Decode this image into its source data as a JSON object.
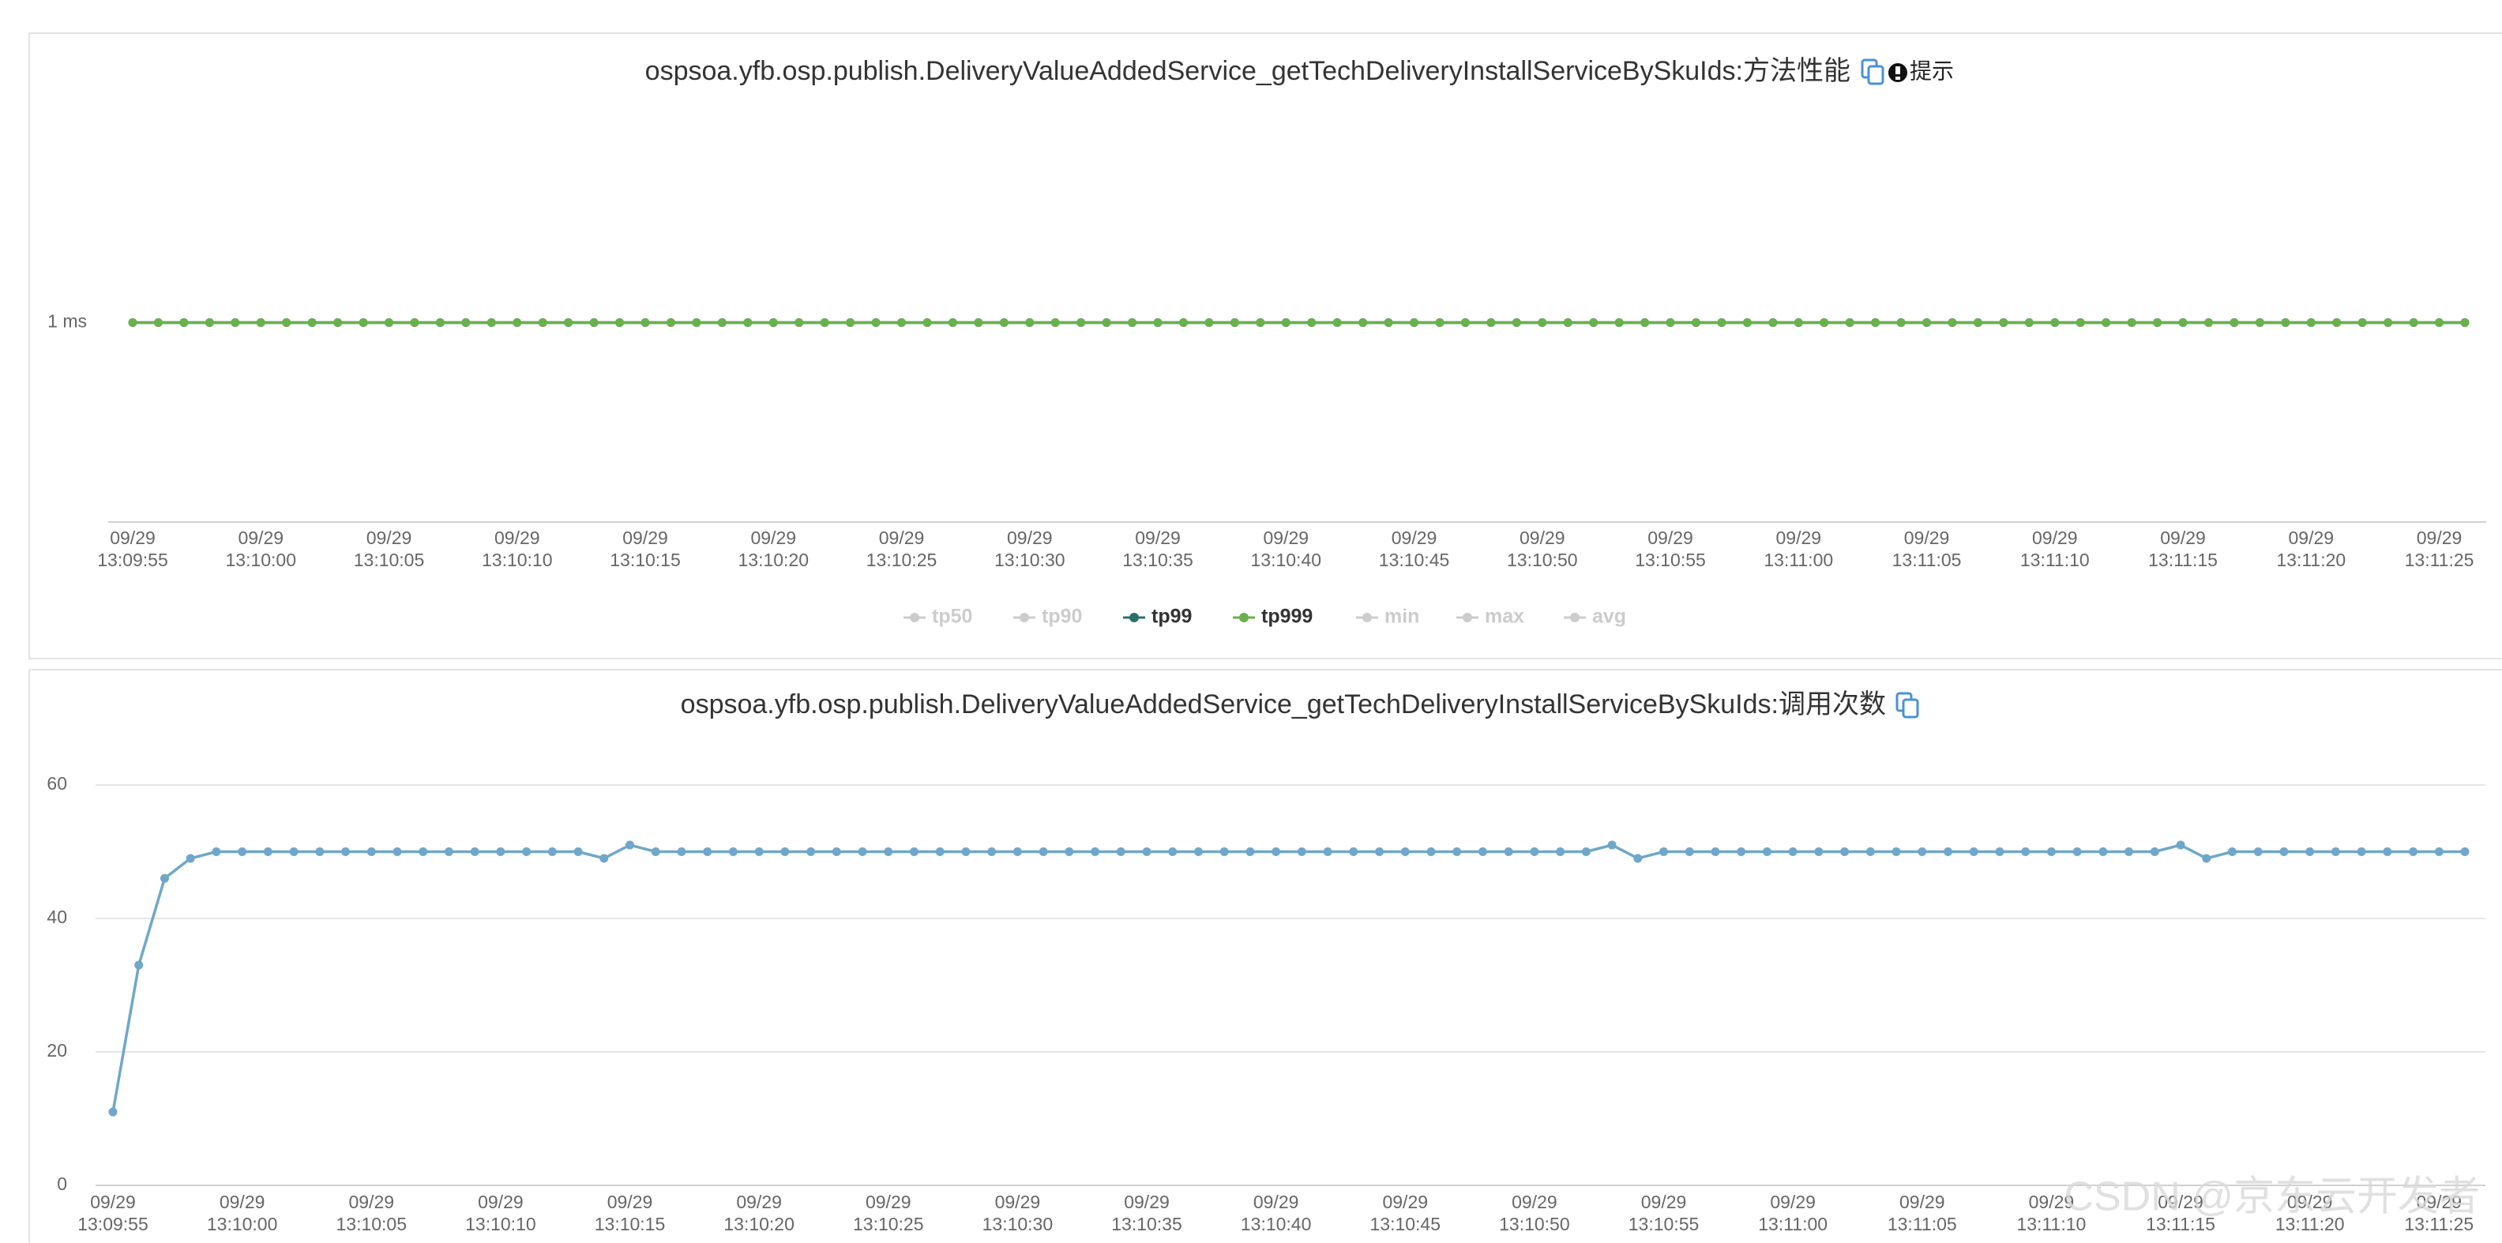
{
  "chart_data": [
    {
      "type": "line",
      "title": "ospsoa.yfb.osp.publish.DeliveryValueAddedService_getTechDeliveryInstallServiceBySkuIds:方法性能",
      "tip": "提示",
      "x": [
        "09/29\n13:09:55",
        null,
        null,
        null,
        null,
        "09/29\n13:10:00",
        null,
        null,
        null,
        null,
        "09/29\n13:10:05",
        null,
        null,
        null,
        null,
        "09/29\n13:10:10",
        null,
        null,
        null,
        null,
        "09/29\n13:10:15",
        null,
        null,
        null,
        null,
        "09/29\n13:10:20",
        null,
        null,
        null,
        null,
        "09/29\n13:10:25",
        null,
        null,
        null,
        null,
        "09/29\n13:10:30",
        null,
        null,
        null,
        null,
        "09/29\n13:10:35",
        null,
        null,
        null,
        null,
        "09/29\n13:10:40",
        null,
        null,
        null,
        null,
        "09/29\n13:10:45",
        null,
        null,
        null,
        null,
        "09/29\n13:10:50",
        null,
        null,
        null,
        null,
        "09/29\n13:10:55",
        null,
        null,
        null,
        null,
        "09/29\n13:11:00",
        null,
        null,
        null,
        null,
        "09/29\n13:11:05",
        null,
        null,
        null,
        null,
        "09/29\n13:11:10",
        null,
        null,
        null,
        null,
        "09/29\n13:11:15",
        null,
        null,
        null,
        null,
        "09/29\n13:11:20",
        null,
        null,
        null,
        null,
        "09/29\n13:11:25",
        null
      ],
      "series": [
        {
          "name": "tp50",
          "color": "#cccccc",
          "active": false
        },
        {
          "name": "tp90",
          "color": "#cccccc",
          "active": false
        },
        {
          "name": "tp99",
          "color": "#2c6f68",
          "active": true,
          "values": [
            1,
            1,
            1,
            1,
            1,
            1,
            1,
            1,
            1,
            1,
            1,
            1,
            1,
            1,
            1,
            1,
            1,
            1,
            1,
            1,
            1,
            1,
            1,
            1,
            1,
            1,
            1,
            1,
            1,
            1,
            1,
            1,
            1,
            1,
            1,
            1,
            1,
            1,
            1,
            1,
            1,
            1,
            1,
            1,
            1,
            1,
            1,
            1,
            1,
            1,
            1,
            1,
            1,
            1,
            1,
            1,
            1,
            1,
            1,
            1,
            1,
            1,
            1,
            1,
            1,
            1,
            1,
            1,
            1,
            1,
            1,
            1,
            1,
            1,
            1,
            1,
            1,
            1,
            1,
            1,
            1,
            1,
            1,
            1,
            1,
            1,
            1,
            1,
            1,
            1,
            1,
            1
          ]
        },
        {
          "name": "tp999",
          "color": "#6ab04c",
          "active": true,
          "values": [
            1,
            1,
            1,
            1,
            1,
            1,
            1,
            1,
            1,
            1,
            1,
            1,
            1,
            1,
            1,
            1,
            1,
            1,
            1,
            1,
            1,
            1,
            1,
            1,
            1,
            1,
            1,
            1,
            1,
            1,
            1,
            1,
            1,
            1,
            1,
            1,
            1,
            1,
            1,
            1,
            1,
            1,
            1,
            1,
            1,
            1,
            1,
            1,
            1,
            1,
            1,
            1,
            1,
            1,
            1,
            1,
            1,
            1,
            1,
            1,
            1,
            1,
            1,
            1,
            1,
            1,
            1,
            1,
            1,
            1,
            1,
            1,
            1,
            1,
            1,
            1,
            1,
            1,
            1,
            1,
            1,
            1,
            1,
            1,
            1,
            1,
            1,
            1,
            1,
            1,
            1,
            1
          ]
        },
        {
          "name": "min",
          "color": "#cccccc",
          "active": false
        },
        {
          "name": "max",
          "color": "#cccccc",
          "active": false
        },
        {
          "name": "avg",
          "color": "#cccccc",
          "active": false
        }
      ],
      "ylim": [
        0,
        2
      ],
      "yticks": [
        {
          "value": 1,
          "label": "1 ms"
        }
      ],
      "grid": false
    },
    {
      "type": "line",
      "title": "ospsoa.yfb.osp.publish.DeliveryValueAddedService_getTechDeliveryInstallServiceBySkuIds:调用次数",
      "x": [
        "09/29\n13:09:55",
        null,
        null,
        null,
        null,
        "09/29\n13:10:00",
        null,
        null,
        null,
        null,
        "09/29\n13:10:05",
        null,
        null,
        null,
        null,
        "09/29\n13:10:10",
        null,
        null,
        null,
        null,
        "09/29\n13:10:15",
        null,
        null,
        null,
        null,
        "09/29\n13:10:20",
        null,
        null,
        null,
        null,
        "09/29\n13:10:25",
        null,
        null,
        null,
        null,
        "09/29\n13:10:30",
        null,
        null,
        null,
        null,
        "09/29\n13:10:35",
        null,
        null,
        null,
        null,
        "09/29\n13:10:40",
        null,
        null,
        null,
        null,
        "09/29\n13:10:45",
        null,
        null,
        null,
        null,
        "09/29\n13:10:50",
        null,
        null,
        null,
        null,
        "09/29\n13:10:55",
        null,
        null,
        null,
        null,
        "09/29\n13:11:00",
        null,
        null,
        null,
        null,
        "09/29\n13:11:05",
        null,
        null,
        null,
        null,
        "09/29\n13:11:10",
        null,
        null,
        null,
        null,
        "09/29\n13:11:15",
        null,
        null,
        null,
        null,
        "09/29\n13:11:20",
        null,
        null,
        null,
        null,
        "09/29\n13:11:25",
        null
      ],
      "values": [
        11,
        33,
        46,
        49,
        50,
        50,
        50,
        50,
        50,
        50,
        50,
        50,
        50,
        50,
        50,
        50,
        50,
        50,
        50,
        49,
        51,
        50,
        50,
        50,
        50,
        50,
        50,
        50,
        50,
        50,
        50,
        50,
        50,
        50,
        50,
        50,
        50,
        50,
        50,
        50,
        50,
        50,
        50,
        50,
        50,
        50,
        50,
        50,
        50,
        50,
        50,
        50,
        50,
        50,
        50,
        50,
        50,
        50,
        51,
        49,
        50,
        50,
        50,
        50,
        50,
        50,
        50,
        50,
        50,
        50,
        50,
        50,
        50,
        50,
        50,
        50,
        50,
        50,
        50,
        50,
        51,
        49,
        50,
        50,
        50,
        50,
        50,
        50,
        50,
        50,
        50,
        50
      ],
      "color": "#6ea7c9",
      "ylim": [
        0,
        60
      ],
      "yticks": [
        0,
        20,
        40,
        60
      ],
      "grid": true
    }
  ],
  "watermark": "CSDN @京东云开发者"
}
